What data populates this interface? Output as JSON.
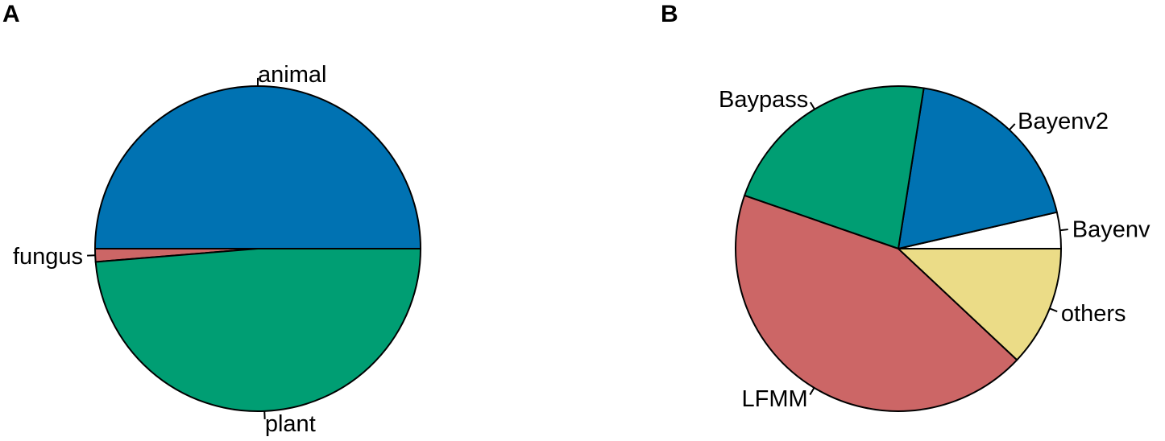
{
  "chart_data": [
    {
      "type": "pie",
      "panel": "A",
      "slices": [
        {
          "label": "animal",
          "value": 50.0,
          "color": "#0072B2"
        },
        {
          "label": "fungus",
          "value": 1.3,
          "color": "#CC6666"
        },
        {
          "label": "plant",
          "value": 48.7,
          "color": "#009E73"
        }
      ]
    },
    {
      "type": "pie",
      "panel": "B",
      "slices": [
        {
          "label": "Bayenv",
          "value": 3.6,
          "color": "#FFFFFF"
        },
        {
          "label": "Bayenv2",
          "value": 18.9,
          "color": "#0072B2"
        },
        {
          "label": "Baypass",
          "value": 22.2,
          "color": "#009E73"
        },
        {
          "label": "LFMM",
          "value": 43.3,
          "color": "#CC6666"
        },
        {
          "label": "others",
          "value": 12.0,
          "color": "#EBDC87"
        }
      ]
    }
  ]
}
